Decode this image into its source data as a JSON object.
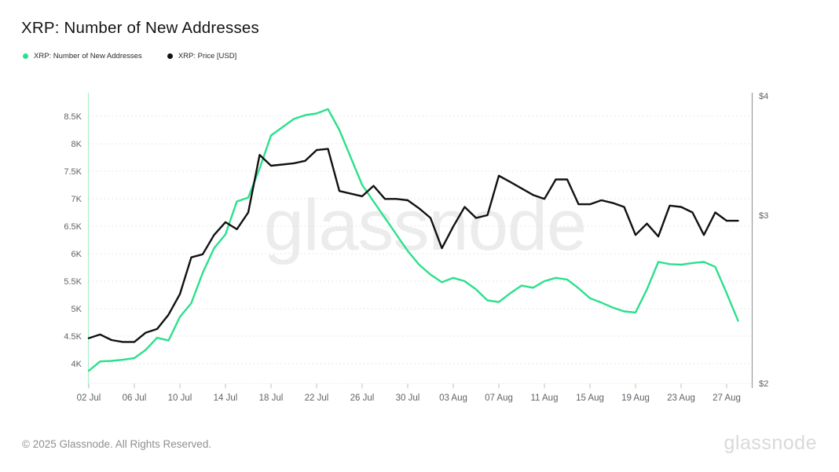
{
  "header": {
    "title": "XRP: Number of New Addresses"
  },
  "legend": [
    {
      "label": "XRP: Number of New Addresses",
      "color": "#2be08c"
    },
    {
      "label": "XRP: Price [USD]",
      "color": "#111111"
    }
  ],
  "watermark": "glassnode",
  "footer": {
    "copyright": "© 2025 Glassnode. All Rights Reserved.",
    "brand": "glassnode"
  },
  "colors": {
    "addresses_line": "#2be08c",
    "price_line": "#111111",
    "left_axis_line": "#abefce",
    "right_axis_line": "#9b9b9b",
    "gridline": "#e0e0e0",
    "tick_label": "#5f6368",
    "watermark": "#ececec"
  },
  "chart_data": {
    "type": "line",
    "title": "XRP: Number of New Addresses",
    "grid": true,
    "legend_position": "top-left",
    "x": [
      "02 Jul",
      "03 Jul",
      "04 Jul",
      "05 Jul",
      "06 Jul",
      "07 Jul",
      "08 Jul",
      "09 Jul",
      "10 Jul",
      "11 Jul",
      "12 Jul",
      "13 Jul",
      "14 Jul",
      "15 Jul",
      "16 Jul",
      "17 Jul",
      "18 Jul",
      "19 Jul",
      "20 Jul",
      "21 Jul",
      "22 Jul",
      "23 Jul",
      "24 Jul",
      "25 Jul",
      "26 Jul",
      "27 Jul",
      "28 Jul",
      "29 Jul",
      "30 Jul",
      "31 Jul",
      "01 Aug",
      "02 Aug",
      "03 Aug",
      "04 Aug",
      "05 Aug",
      "06 Aug",
      "07 Aug",
      "08 Aug",
      "09 Aug",
      "10 Aug",
      "11 Aug",
      "12 Aug",
      "13 Aug",
      "14 Aug",
      "15 Aug",
      "16 Aug",
      "17 Aug",
      "18 Aug",
      "19 Aug",
      "20 Aug",
      "21 Aug",
      "22 Aug",
      "23 Aug",
      "24 Aug",
      "25 Aug",
      "26 Aug",
      "27 Aug",
      "28 Aug"
    ],
    "x_tick_labels": [
      "02 Jul",
      "06 Jul",
      "10 Jul",
      "14 Jul",
      "18 Jul",
      "22 Jul",
      "26 Jul",
      "30 Jul",
      "03 Aug",
      "07 Aug",
      "11 Aug",
      "15 Aug",
      "19 Aug",
      "23 Aug",
      "27 Aug"
    ],
    "series": [
      {
        "name": "XRP: Number of New Addresses",
        "axis": "left",
        "color": "#2be08c",
        "values": [
          3870,
          4040,
          4050,
          4070,
          4100,
          4250,
          4470,
          4420,
          4850,
          5100,
          5650,
          6100,
          6350,
          6950,
          7020,
          7550,
          8150,
          8300,
          8450,
          8520,
          8550,
          8630,
          8250,
          7750,
          7250,
          6950,
          6650,
          6350,
          6050,
          5800,
          5620,
          5480,
          5560,
          5500,
          5350,
          5150,
          5120,
          5280,
          5420,
          5380,
          5500,
          5560,
          5530,
          5370,
          5190,
          5110,
          5020,
          4950,
          4930,
          5350,
          5850,
          5810,
          5800,
          5830,
          5850,
          5760,
          5280,
          4780
        ]
      },
      {
        "name": "XRP: Price [USD]",
        "axis": "right",
        "color": "#111111",
        "values": [
          2.23,
          2.25,
          2.22,
          2.21,
          2.21,
          2.26,
          2.28,
          2.36,
          2.48,
          2.71,
          2.73,
          2.86,
          2.95,
          2.9,
          3.02,
          3.47,
          3.38,
          3.39,
          3.4,
          3.42,
          3.51,
          3.52,
          3.18,
          3.16,
          3.14,
          3.22,
          3.12,
          3.12,
          3.11,
          3.05,
          2.98,
          2.77,
          2.92,
          3.06,
          2.98,
          3.0,
          3.3,
          3.25,
          3.2,
          3.15,
          3.12,
          3.27,
          3.27,
          3.08,
          3.08,
          3.11,
          3.09,
          3.06,
          2.86,
          2.94,
          2.85,
          3.07,
          3.06,
          3.02,
          2.86,
          3.02,
          2.96,
          2.96
        ]
      }
    ],
    "left_axis": {
      "scale": "linear",
      "range_display": [
        3600,
        8900
      ],
      "ticks": [
        {
          "value": 4000,
          "label": "4K"
        },
        {
          "value": 4500,
          "label": "4.5K"
        },
        {
          "value": 5000,
          "label": "5K"
        },
        {
          "value": 5500,
          "label": "5.5K"
        },
        {
          "value": 6000,
          "label": "6K"
        },
        {
          "value": 6500,
          "label": "6.5K"
        },
        {
          "value": 7000,
          "label": "7K"
        },
        {
          "value": 7500,
          "label": "7.5K"
        },
        {
          "value": 8000,
          "label": "8K"
        },
        {
          "value": 8500,
          "label": "8.5K"
        }
      ]
    },
    "right_axis": {
      "scale": "log",
      "range_display": [
        2,
        4
      ],
      "ticks": [
        {
          "value": 2,
          "label": "$2"
        },
        {
          "value": 3,
          "label": "$3"
        },
        {
          "value": 4,
          "label": "$4"
        }
      ]
    }
  }
}
